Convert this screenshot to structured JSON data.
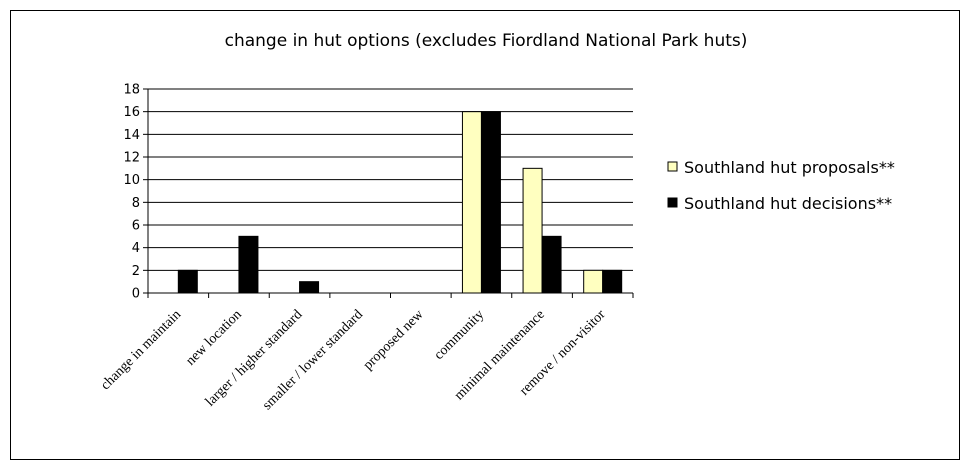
{
  "chart_data": {
    "type": "bar",
    "title": "change in hut options (excludes Fiordland National Park huts)",
    "categories": [
      "change in maintain",
      "new location",
      "larger / higher standard",
      "smaller / lower standard",
      "proposed new",
      "community",
      "minimal maintenance",
      "remove / non-visitor"
    ],
    "series": [
      {
        "name": "Southland hut proposals**",
        "color": "#ffffc0",
        "values": [
          0,
          0,
          0,
          0,
          0,
          16,
          11,
          2
        ]
      },
      {
        "name": "Southland hut decisions**",
        "color": "#000000",
        "values": [
          2,
          5,
          1,
          0,
          0,
          16,
          5,
          2
        ]
      }
    ],
    "ylim": [
      0,
      18
    ],
    "yticks": [
      0,
      2,
      4,
      6,
      8,
      10,
      12,
      14,
      16,
      18
    ],
    "grid": true,
    "legend_position": "right"
  }
}
